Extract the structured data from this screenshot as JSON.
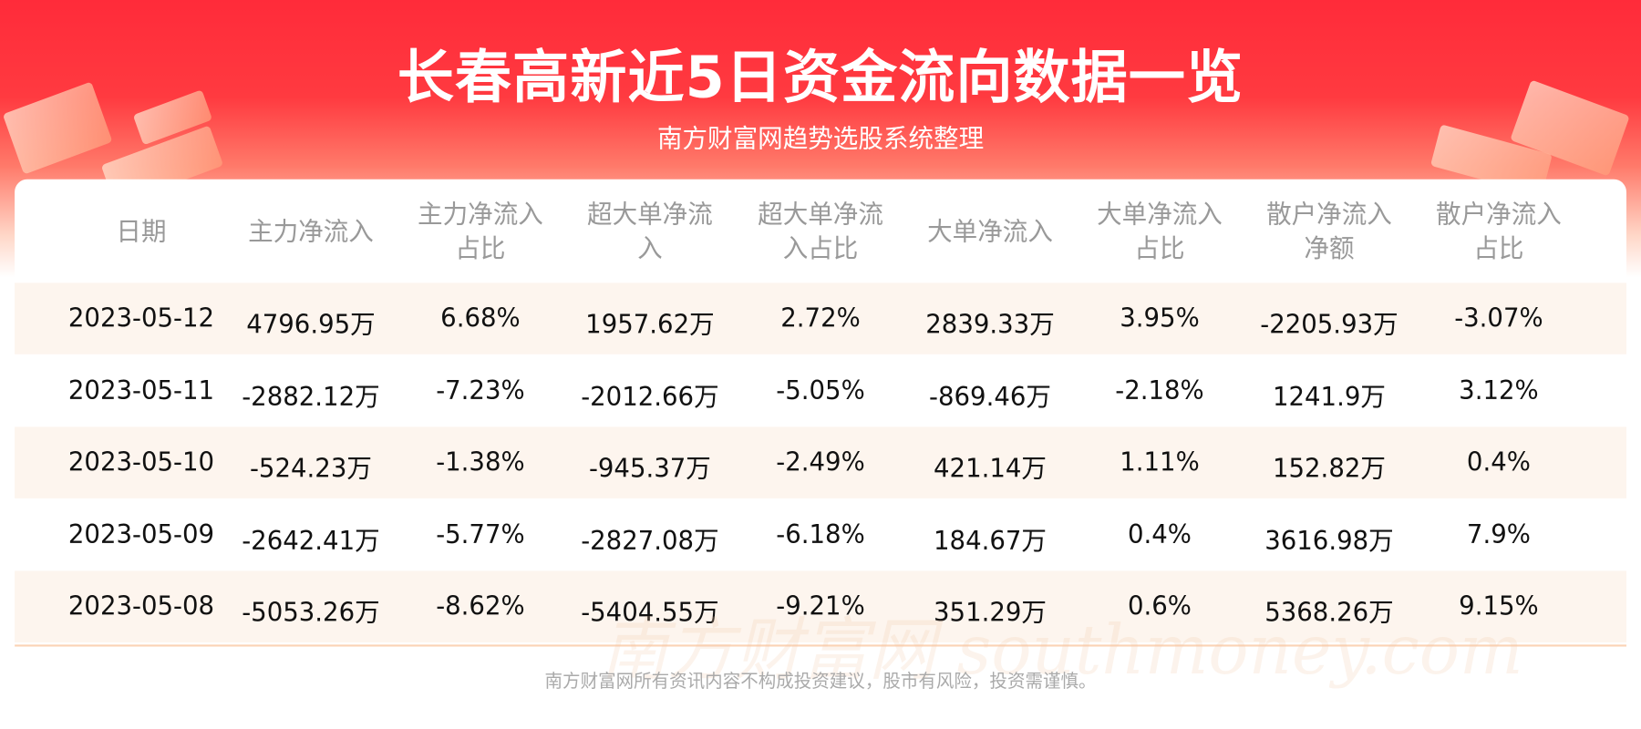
{
  "header": {
    "title": "长春高新近5日资金流向数据一览",
    "subtitle": "南方财富网趋势选股系统整理"
  },
  "watermark": "南方财富网 southmoney.com",
  "table": {
    "columns": [
      "日期",
      "主力净流入",
      "主力净流入占比",
      "超大单净流入",
      "超大单净流入占比",
      "大单净流入",
      "大单净流入占比",
      "散户净流入净额",
      "散户净流入占比"
    ],
    "column_lines": [
      [
        "日期"
      ],
      [
        "主力净流入"
      ],
      [
        "主力净流入",
        "占比"
      ],
      [
        "超大单净流",
        "入"
      ],
      [
        "超大单净流",
        "入占比"
      ],
      [
        "大单净流入"
      ],
      [
        "大单净流入",
        "占比"
      ],
      [
        "散户净流入",
        "净额"
      ],
      [
        "散户净流入",
        "占比"
      ]
    ],
    "rows": [
      [
        "2023-05-12",
        "4796.95万",
        "6.68%",
        "1957.62万",
        "2.72%",
        "2839.33万",
        "3.95%",
        "-2205.93万",
        "-3.07%"
      ],
      [
        "2023-05-11",
        "-2882.12万",
        "-7.23%",
        "-2012.66万",
        "-5.05%",
        "-869.46万",
        "-2.18%",
        "1241.9万",
        "3.12%"
      ],
      [
        "2023-05-10",
        "-524.23万",
        "-1.38%",
        "-945.37万",
        "-2.49%",
        "421.14万",
        "1.11%",
        "152.82万",
        "0.4%"
      ],
      [
        "2023-05-09",
        "-2642.41万",
        "-5.77%",
        "-2827.08万",
        "-6.18%",
        "184.67万",
        "0.4%",
        "3616.98万",
        "7.9%"
      ],
      [
        "2023-05-08",
        "-5053.26万",
        "-8.62%",
        "-5404.55万",
        "-9.21%",
        "351.29万",
        "0.6%",
        "5368.26万",
        "9.15%"
      ]
    ]
  },
  "footer": "南方财富网所有资讯内容不构成投资建议，股市有风险，投资需谨慎。",
  "colors": {
    "banner_red": "#ff2b3a",
    "row_tint": "#fdf5ee",
    "header_text": "#999999"
  }
}
